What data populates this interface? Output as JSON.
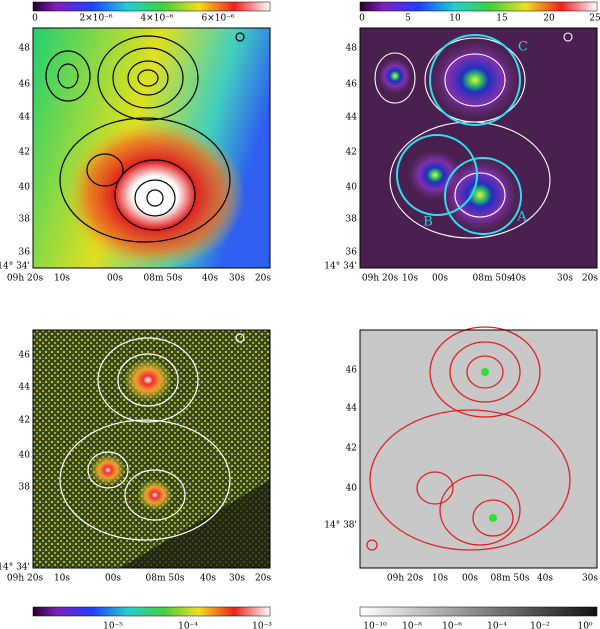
{
  "panels": [
    {
      "colorbar": [
        "0",
        "2×10⁻⁶",
        "4×10⁻⁶",
        "6×10⁻⁶"
      ],
      "dec_labels": [
        "48",
        "46",
        "44",
        "42",
        "40",
        "38",
        "36",
        "14° 34'"
      ],
      "ra_labels": [
        "09h 20s",
        "10s",
        "00s",
        "08m 50s",
        "40s",
        "30s",
        "20s"
      ]
    },
    {
      "colorbar": [
        "0",
        "5",
        "10",
        "15",
        "20",
        "25"
      ],
      "dec_labels": [
        "48",
        "46",
        "44",
        "42",
        "40",
        "38",
        "36",
        "14° 34'"
      ],
      "ra_labels": [
        "09h 20s",
        "10s",
        "00s",
        "08m 50s",
        "40s",
        "30s",
        "20s"
      ],
      "annotations": [
        "A",
        "B",
        "C"
      ]
    },
    {
      "colorbar": [
        "10⁻⁵",
        "10⁻⁴",
        "10⁻³"
      ],
      "dec_labels": [
        "46",
        "44",
        "42",
        "40",
        "38",
        "14° 34'"
      ],
      "ra_labels": [
        "09h 20s",
        "10s",
        "00s",
        "08m 50s",
        "40s",
        "30s",
        "20s"
      ]
    },
    {
      "colorbar": [
        "10⁻¹⁰",
        "10⁻⁸",
        "10⁻⁶",
        "10⁻⁴",
        "10⁻²",
        "10⁰"
      ],
      "dec_labels": [
        "46",
        "44",
        "42",
        "40",
        "14° 38'"
      ],
      "ra_labels": [
        "09h 20s",
        "10s",
        "00s",
        "08m 50s",
        "40s",
        "30s"
      ]
    }
  ]
}
